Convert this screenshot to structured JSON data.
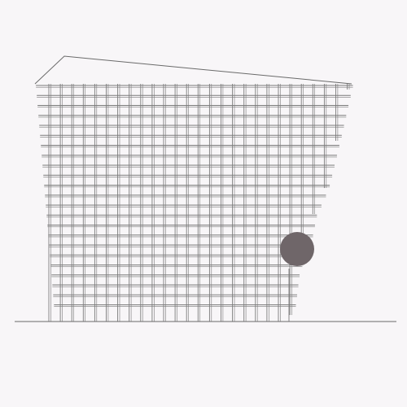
{
  "drawing": {
    "colors": {
      "background": "#f8f6f8",
      "line": "#6a6a6a",
      "grid": "#7a7a7a",
      "circle": "#6f6669"
    },
    "elements": {
      "roof": "roof-outline",
      "grid": "facade-grid",
      "slabs": "floor-slab-lines",
      "ground": "ground-line",
      "circle": "dark-circle"
    }
  }
}
